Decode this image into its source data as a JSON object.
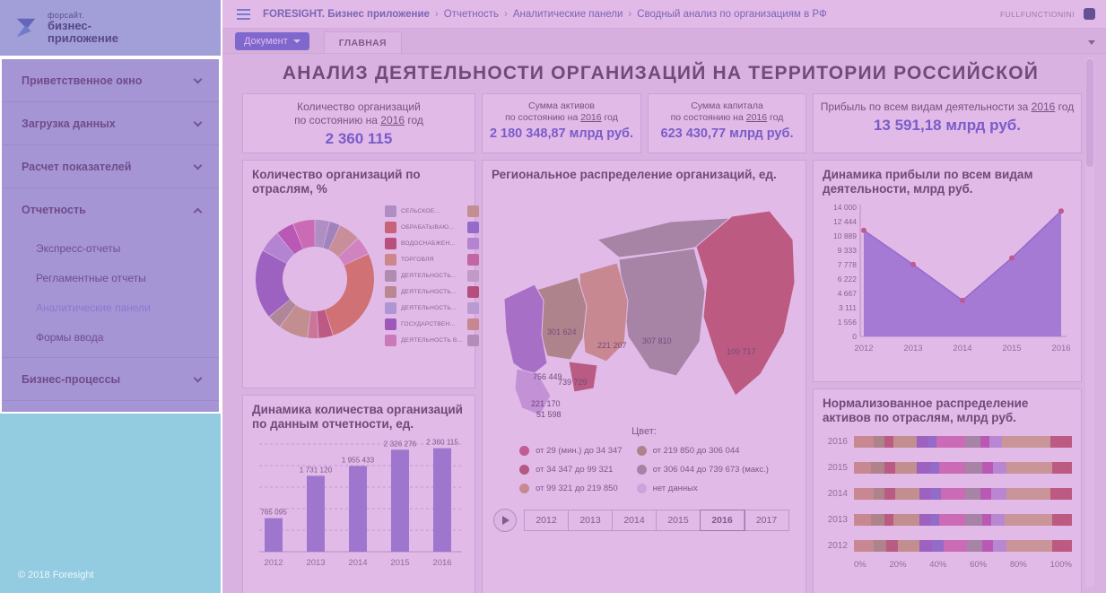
{
  "sidebar": {
    "brand": {
      "small": "форсайт.",
      "line1": "бизнес-",
      "line2": "приложение"
    },
    "items": [
      {
        "label": "Приветственное окно"
      },
      {
        "label": "Загрузка данных"
      },
      {
        "label": "Расчет показателей"
      },
      {
        "label": "Отчетность"
      },
      {
        "label": "Бизнес-процессы"
      }
    ],
    "report_children": [
      {
        "label": "Экспресс-отчеты"
      },
      {
        "label": "Регламентные отчеты"
      },
      {
        "label": "Аналитические панели"
      },
      {
        "label": "Формы ввода"
      }
    ],
    "active_item": "Аналитические панели",
    "footer": "© 2018 Foresight"
  },
  "header": {
    "breadcrumb": [
      "FORESIGHT. Бизнес приложение",
      "Отчетность",
      "Аналитические панели",
      "Сводный анализ по организациям в РФ"
    ],
    "separator": "›",
    "user": "FULLFUNCTIONINI"
  },
  "toolbar": {
    "document_button": "Документ",
    "tab_main": "ГЛАВНАЯ"
  },
  "dashboard": {
    "title": "АНАЛИЗ ДЕЯТЕЛЬНОСТИ ОРГАНИЗАЦИЙ НА ТЕРРИТОРИИ РОССИЙСКОЙ",
    "kpis": [
      {
        "line1": "Количество организаций",
        "prefix": "по состоянию на ",
        "year": "2016",
        "suffix": " год",
        "value": "2 360 115"
      },
      {
        "line1": "Сумма активов",
        "prefix": "по состоянию на ",
        "year": "2016",
        "suffix": " год",
        "value": "2 180 348,87 млрд руб."
      },
      {
        "line1": "Сумма капитала",
        "prefix": "по состоянию на ",
        "year": "2016",
        "suffix": " год",
        "value": "623 430,77 млрд руб."
      },
      {
        "prefix": "Прибыль по всем видам деятельности за ",
        "year": "2016",
        "suffix": " год",
        "value": "13 591,18 млрд руб."
      }
    ]
  },
  "chart_data": [
    {
      "id": "industry_donut",
      "type": "pie",
      "title": "Количество организаций по отраслям, %",
      "values": [
        4,
        3,
        6,
        5,
        27,
        4,
        3,
        8,
        4,
        19,
        6,
        5,
        6
      ],
      "colors": [
        "#a8b4c0",
        "#8ea0b0",
        "#d2b478",
        "#e2a0b8",
        "#e0813c",
        "#c05850",
        "#d88878",
        "#c8b468",
        "#a8a878",
        "#8868b8",
        "#b0a0d8",
        "#b858a8",
        "#d878a8"
      ],
      "legend": [
        {
          "label": "СЕЛЬСКОЕ...",
          "left": "#a8b4c0",
          "right": "#c8b468"
        },
        {
          "label": "ОБРАБАТЫВАЮ...",
          "left": "#d06840",
          "right": "#7878c8"
        },
        {
          "label": "ВОДОСНАБЖЕН...",
          "left": "#b84848",
          "right": "#b0a0d8"
        },
        {
          "label": "ТОРГОВЛЯ",
          "left": "#d8a860",
          "right": "#c87088"
        },
        {
          "label": "ДЕЯТЕЛЬНОСТЬ...",
          "left": "#a8b0a0",
          "right": "#c8c8c8"
        },
        {
          "label": "ДЕЯТЕЛЬНОСТЬ...",
          "left": "#b8a868",
          "right": "#b04848"
        },
        {
          "label": "ДЕЯТЕЛЬНОСТЬ...",
          "left": "#a8c0d8",
          "right": "#b8c8d8"
        },
        {
          "label": "ГОСУДАРСТВЕН...",
          "left": "#8858b0",
          "right": "#d0a868"
        },
        {
          "label": "ДЕЯТЕЛЬНОСТЬ В...",
          "left": "#d890b0",
          "right": "#b0b0b0"
        }
      ]
    },
    {
      "id": "org_dynamics_bar",
      "type": "bar",
      "title": "Динамика количества организаций по данным отчетности, ед.",
      "categories": [
        "2012",
        "2013",
        "2014",
        "2015",
        "2016"
      ],
      "values": [
        765095,
        1731120,
        1955433,
        2326276,
        2360115
      ],
      "value_labels": [
        "765 095",
        "1 731 120",
        "1 955 433",
        "2 326 276",
        "2 360 115"
      ],
      "bar_color": "#8a8ad0",
      "grid": true
    },
    {
      "id": "region_map",
      "type": "map",
      "title": "Региональное распределение организаций, ед.",
      "value_labels": [
        {
          "text": "301 624",
          "x": 62,
          "y": 168
        },
        {
          "text": "221 207",
          "x": 118,
          "y": 183
        },
        {
          "text": "307 810",
          "x": 168,
          "y": 178
        },
        {
          "text": "100 717",
          "x": 262,
          "y": 190
        },
        {
          "text": "756 449",
          "x": 46,
          "y": 218
        },
        {
          "text": "739 729",
          "x": 74,
          "y": 224
        },
        {
          "text": "221 170",
          "x": 44,
          "y": 248
        },
        {
          "text": "51 598",
          "x": 50,
          "y": 260
        }
      ],
      "regions": {
        "north": "#9aa38e",
        "fareast": "#c05a50",
        "siberia": "#9aa38e",
        "central": "#d2a96a",
        "south": "#a8a060",
        "west": "#9b7fc4",
        "westsouth": "#c9b8e0",
        "caucasus": "#b85c50"
      },
      "legend_title": "Цвет:",
      "legend": [
        {
          "color": "#c75d6e",
          "label": "от 29 (мин.) до 34 347"
        },
        {
          "color": "#b0564e",
          "label": "от 34 347 до 99 321"
        },
        {
          "color": "#d4a96a",
          "label": "от 99 321 до 219 850"
        },
        {
          "color": "#a8a060",
          "label": "от 219 850 до 306 044"
        },
        {
          "color": "#97a08a",
          "label": "от 306 044 до 739 673 (макс.)"
        },
        {
          "color": "#ddd6ec",
          "label": "нет данных"
        }
      ],
      "timeline": {
        "years": [
          "2012",
          "2013",
          "2014",
          "2015",
          "2016",
          "2017"
        ],
        "selected": "2016"
      }
    },
    {
      "id": "profit_area",
      "type": "area",
      "title": "Динамика прибыли по всем видам деятельности, млрд руб.",
      "x": [
        "2012",
        "2013",
        "2014",
        "2015",
        "2016"
      ],
      "values": [
        11500,
        7800,
        3900,
        8500,
        13591
      ],
      "ymax": 14000,
      "yticks": [
        "14 000",
        "12 444",
        "10 889",
        "9 333",
        "7 778",
        "6 222",
        "4 667",
        "3 111",
        "1 556",
        "0"
      ],
      "fill": "#8c86d8",
      "stroke": "#7a74cc",
      "point_color": "#c4566c"
    },
    {
      "id": "assets_stacked",
      "type": "stacked_bar",
      "title": "Нормализованное распределение активов по отраслям, млрд руб.",
      "categories": [
        "2016",
        "2015",
        "2014",
        "2013",
        "2012"
      ],
      "xticks": [
        "0%",
        "20%",
        "40%",
        "60%",
        "80%",
        "100%"
      ],
      "colors": [
        "#d2a96a",
        "#a8a060",
        "#b85c50",
        "#c8b468",
        "#8868b8",
        "#7878c8",
        "#d878a8",
        "#9aa38e",
        "#b858a8",
        "#b8a8d8",
        "#d4c078",
        "#c05a50"
      ],
      "rows": [
        [
          9,
          5,
          4,
          11,
          5,
          4,
          13,
          7,
          4,
          6,
          22,
          10
        ],
        [
          8,
          6,
          5,
          10,
          6,
          4,
          12,
          8,
          5,
          6,
          21,
          9
        ],
        [
          9,
          5,
          5,
          11,
          5,
          5,
          11,
          7,
          5,
          7,
          20,
          10
        ],
        [
          8,
          6,
          4,
          12,
          5,
          4,
          12,
          8,
          4,
          6,
          22,
          9
        ],
        [
          9,
          6,
          5,
          10,
          6,
          5,
          11,
          7,
          5,
          6,
          21,
          9
        ]
      ]
    }
  ]
}
